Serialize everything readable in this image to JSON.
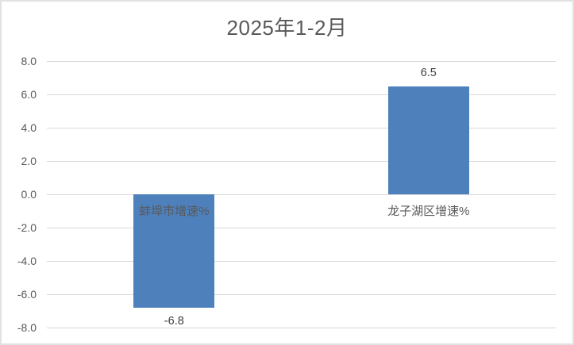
{
  "chart_data": {
    "type": "bar",
    "title": "2025年1-2月",
    "categories": [
      "蚌埠市增速%",
      "龙子湖区增速%"
    ],
    "values": [
      -6.8,
      6.5
    ],
    "data_labels": [
      "-6.8",
      "6.5"
    ],
    "xlabel": "",
    "ylabel": "",
    "ylim": [
      -8.0,
      8.0
    ],
    "ytick_step": 2.0,
    "ytick_labels": [
      "8.0",
      "6.0",
      "4.0",
      "2.0",
      "0.0",
      "-2.0",
      "-4.0",
      "-6.0",
      "-8.0"
    ],
    "grid": true,
    "legend": false,
    "colors": {
      "bar": "#4e80bc",
      "gridline": "#d9d9d9",
      "title_text": "#595959",
      "axis_text": "#595959",
      "data_label_text": "#404040",
      "border": "#e2e2e2",
      "background": "#ffffff"
    }
  }
}
